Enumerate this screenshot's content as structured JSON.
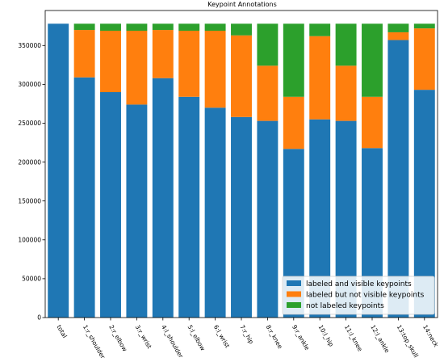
{
  "chart_data": {
    "type": "bar",
    "stacked": true,
    "title": "Keypoint Annotations",
    "xlabel": "",
    "ylabel": "",
    "ylim": [
      0,
      395000
    ],
    "yticks": [
      0,
      50000,
      100000,
      150000,
      200000,
      250000,
      300000,
      350000
    ],
    "grid": false,
    "legend_position": "lower-right",
    "categories": [
      "total",
      "1:r_shoulder",
      "2:r_elbow",
      "3:r_wrist",
      "4:l_shoulder",
      "5:l_elbow",
      "6:l_wrist",
      "7:r_hip",
      "8:r_knee",
      "9:r_ankle",
      "10:l_hip",
      "11:l_knee",
      "12:l_ankle",
      "13:top_skull",
      "14:neck"
    ],
    "series": [
      {
        "name": "labeled and visible keypoints",
        "color": "#1f77b4",
        "values": [
          378000,
          309000,
          290000,
          274000,
          308000,
          284000,
          270000,
          258000,
          253000,
          217000,
          255000,
          253000,
          218000,
          357000,
          293000
        ]
      },
      {
        "name": "labeled but not visible keypoints",
        "color": "#ff7f0e",
        "values": [
          0,
          61000,
          79000,
          95000,
          62000,
          85000,
          99000,
          105000,
          71000,
          67000,
          107000,
          71000,
          66000,
          10000,
          79000
        ]
      },
      {
        "name": "not labeled keypoints",
        "color": "#2ca02c",
        "values": [
          0,
          8000,
          9000,
          9000,
          8000,
          9000,
          9000,
          15000,
          54000,
          94000,
          16000,
          54000,
          94000,
          11000,
          6000
        ]
      }
    ]
  }
}
